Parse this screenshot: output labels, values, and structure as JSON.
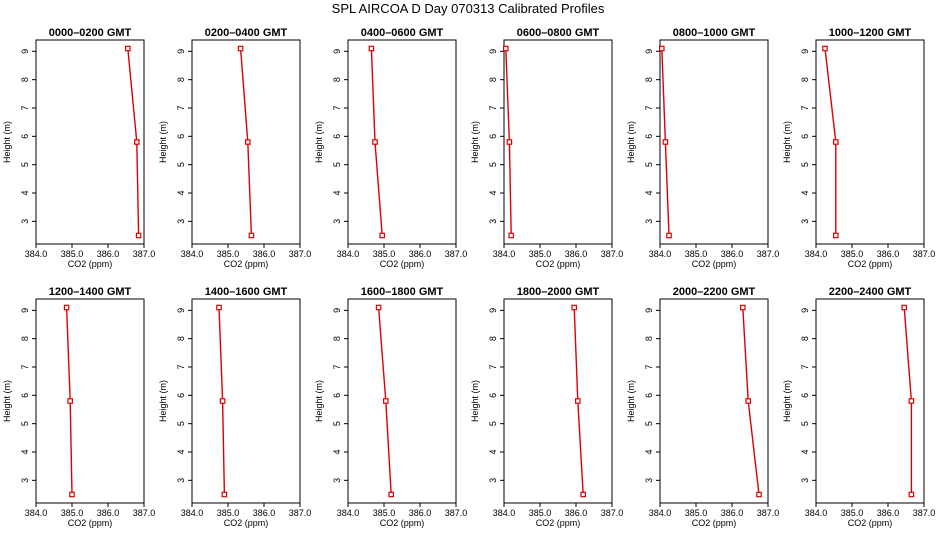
{
  "figure": {
    "title": "SPL AIRCOA D  Day 070313  Calibrated Profiles"
  },
  "colors": {
    "series": "#dd0000",
    "axes": "#000000"
  },
  "chart_data": [
    {
      "type": "line",
      "title": "0000–0200 GMT",
      "xlabel": "CO2 (ppm)",
      "ylabel": "Height (m)",
      "xlim": [
        384.0,
        387.0
      ],
      "ylim": [
        2.2,
        9.4
      ],
      "xticks": [
        "384.0",
        "385.0",
        "386.0",
        "387.0"
      ],
      "yticks": [
        "3",
        "4",
        "5",
        "6",
        "7",
        "8",
        "9"
      ],
      "x": [
        386.85,
        386.8,
        386.55
      ],
      "y": [
        2.5,
        5.8,
        9.1
      ]
    },
    {
      "type": "line",
      "title": "0200–0400 GMT",
      "xlabel": "CO2 (ppm)",
      "ylabel": "Height (m)",
      "xlim": [
        384.0,
        387.0
      ],
      "ylim": [
        2.2,
        9.4
      ],
      "xticks": [
        "384.0",
        "385.0",
        "386.0",
        "387.0"
      ],
      "yticks": [
        "3",
        "4",
        "5",
        "6",
        "7",
        "8",
        "9"
      ],
      "x": [
        385.65,
        385.55,
        385.35
      ],
      "y": [
        2.5,
        5.8,
        9.1
      ]
    },
    {
      "type": "line",
      "title": "0400–0600 GMT",
      "xlabel": "CO2 (ppm)",
      "ylabel": "Height (m)",
      "xlim": [
        384.0,
        387.0
      ],
      "ylim": [
        2.2,
        9.4
      ],
      "xticks": [
        "384.0",
        "385.0",
        "386.0",
        "387.0"
      ],
      "yticks": [
        "3",
        "4",
        "5",
        "6",
        "7",
        "8",
        "9"
      ],
      "x": [
        384.95,
        384.75,
        384.65
      ],
      "y": [
        2.5,
        5.8,
        9.1
      ]
    },
    {
      "type": "line",
      "title": "0600–0800 GMT",
      "xlabel": "CO2 (ppm)",
      "ylabel": "Height (m)",
      "xlim": [
        384.0,
        387.0
      ],
      "ylim": [
        2.2,
        9.4
      ],
      "xticks": [
        "384.0",
        "385.0",
        "386.0",
        "387.0"
      ],
      "yticks": [
        "3",
        "4",
        "5",
        "6",
        "7",
        "8",
        "9"
      ],
      "x": [
        384.2,
        384.15,
        384.05
      ],
      "y": [
        2.5,
        5.8,
        9.1
      ]
    },
    {
      "type": "line",
      "title": "0800–1000 GMT",
      "xlabel": "CO2 (ppm)",
      "ylabel": "Height (m)",
      "xlim": [
        384.0,
        387.0
      ],
      "ylim": [
        2.2,
        9.4
      ],
      "xticks": [
        "384.0",
        "385.0",
        "386.0",
        "387.0"
      ],
      "yticks": [
        "3",
        "4",
        "5",
        "6",
        "7",
        "8",
        "9"
      ],
      "x": [
        384.25,
        384.15,
        384.05
      ],
      "y": [
        2.5,
        5.8,
        9.1
      ]
    },
    {
      "type": "line",
      "title": "1000–1200 GMT",
      "xlabel": "CO2 (ppm)",
      "ylabel": "Height (m)",
      "xlim": [
        384.0,
        387.0
      ],
      "ylim": [
        2.2,
        9.4
      ],
      "xticks": [
        "384.0",
        "385.0",
        "386.0",
        "387.0"
      ],
      "yticks": [
        "3",
        "4",
        "5",
        "6",
        "7",
        "8",
        "9"
      ],
      "x": [
        384.55,
        384.55,
        384.25
      ],
      "y": [
        2.5,
        5.8,
        9.1
      ]
    },
    {
      "type": "line",
      "title": "1200–1400 GMT",
      "xlabel": "CO2 (ppm)",
      "ylabel": "Height (m)",
      "xlim": [
        384.0,
        387.0
      ],
      "ylim": [
        2.2,
        9.4
      ],
      "xticks": [
        "384.0",
        "385.0",
        "386.0",
        "387.0"
      ],
      "yticks": [
        "3",
        "4",
        "5",
        "6",
        "7",
        "8",
        "9"
      ],
      "x": [
        385.0,
        384.95,
        384.85
      ],
      "y": [
        2.5,
        5.8,
        9.1
      ]
    },
    {
      "type": "line",
      "title": "1400–1600 GMT",
      "xlabel": "CO2 (ppm)",
      "ylabel": "Height (m)",
      "xlim": [
        384.0,
        387.0
      ],
      "ylim": [
        2.2,
        9.4
      ],
      "xticks": [
        "384.0",
        "385.0",
        "386.0",
        "387.0"
      ],
      "yticks": [
        "3",
        "4",
        "5",
        "6",
        "7",
        "8",
        "9"
      ],
      "x": [
        384.9,
        384.85,
        384.75
      ],
      "y": [
        2.5,
        5.8,
        9.1
      ]
    },
    {
      "type": "line",
      "title": "1600–1800 GMT",
      "xlabel": "CO2 (ppm)",
      "ylabel": "Height (m)",
      "xlim": [
        384.0,
        387.0
      ],
      "ylim": [
        2.2,
        9.4
      ],
      "xticks": [
        "384.0",
        "385.0",
        "386.0",
        "387.0"
      ],
      "yticks": [
        "3",
        "4",
        "5",
        "6",
        "7",
        "8",
        "9"
      ],
      "x": [
        385.2,
        385.05,
        384.85
      ],
      "y": [
        2.5,
        5.8,
        9.1
      ]
    },
    {
      "type": "line",
      "title": "1800–2000 GMT",
      "xlabel": "CO2 (ppm)",
      "ylabel": "Height (m)",
      "xlim": [
        384.0,
        387.0
      ],
      "ylim": [
        2.2,
        9.4
      ],
      "xticks": [
        "384.0",
        "385.0",
        "386.0",
        "387.0"
      ],
      "yticks": [
        "3",
        "4",
        "5",
        "6",
        "7",
        "8",
        "9"
      ],
      "x": [
        386.2,
        386.05,
        385.95
      ],
      "y": [
        2.5,
        5.8,
        9.1
      ]
    },
    {
      "type": "line",
      "title": "2000–2200 GMT",
      "xlabel": "CO2 (ppm)",
      "ylabel": "Height (m)",
      "xlim": [
        384.0,
        387.0
      ],
      "ylim": [
        2.2,
        9.4
      ],
      "xticks": [
        "384.0",
        "385.0",
        "386.0",
        "387.0"
      ],
      "yticks": [
        "3",
        "4",
        "5",
        "6",
        "7",
        "8",
        "9"
      ],
      "x": [
        386.75,
        386.45,
        386.3
      ],
      "y": [
        2.5,
        5.8,
        9.1
      ]
    },
    {
      "type": "line",
      "title": "2200–2400 GMT",
      "xlabel": "CO2 (ppm)",
      "ylabel": "Height (m)",
      "xlim": [
        384.0,
        387.0
      ],
      "ylim": [
        2.2,
        9.4
      ],
      "xticks": [
        "384.0",
        "385.0",
        "386.0",
        "387.0"
      ],
      "yticks": [
        "3",
        "4",
        "5",
        "6",
        "7",
        "8",
        "9"
      ],
      "x": [
        386.65,
        386.65,
        386.45
      ],
      "y": [
        2.5,
        5.8,
        9.1
      ]
    }
  ]
}
